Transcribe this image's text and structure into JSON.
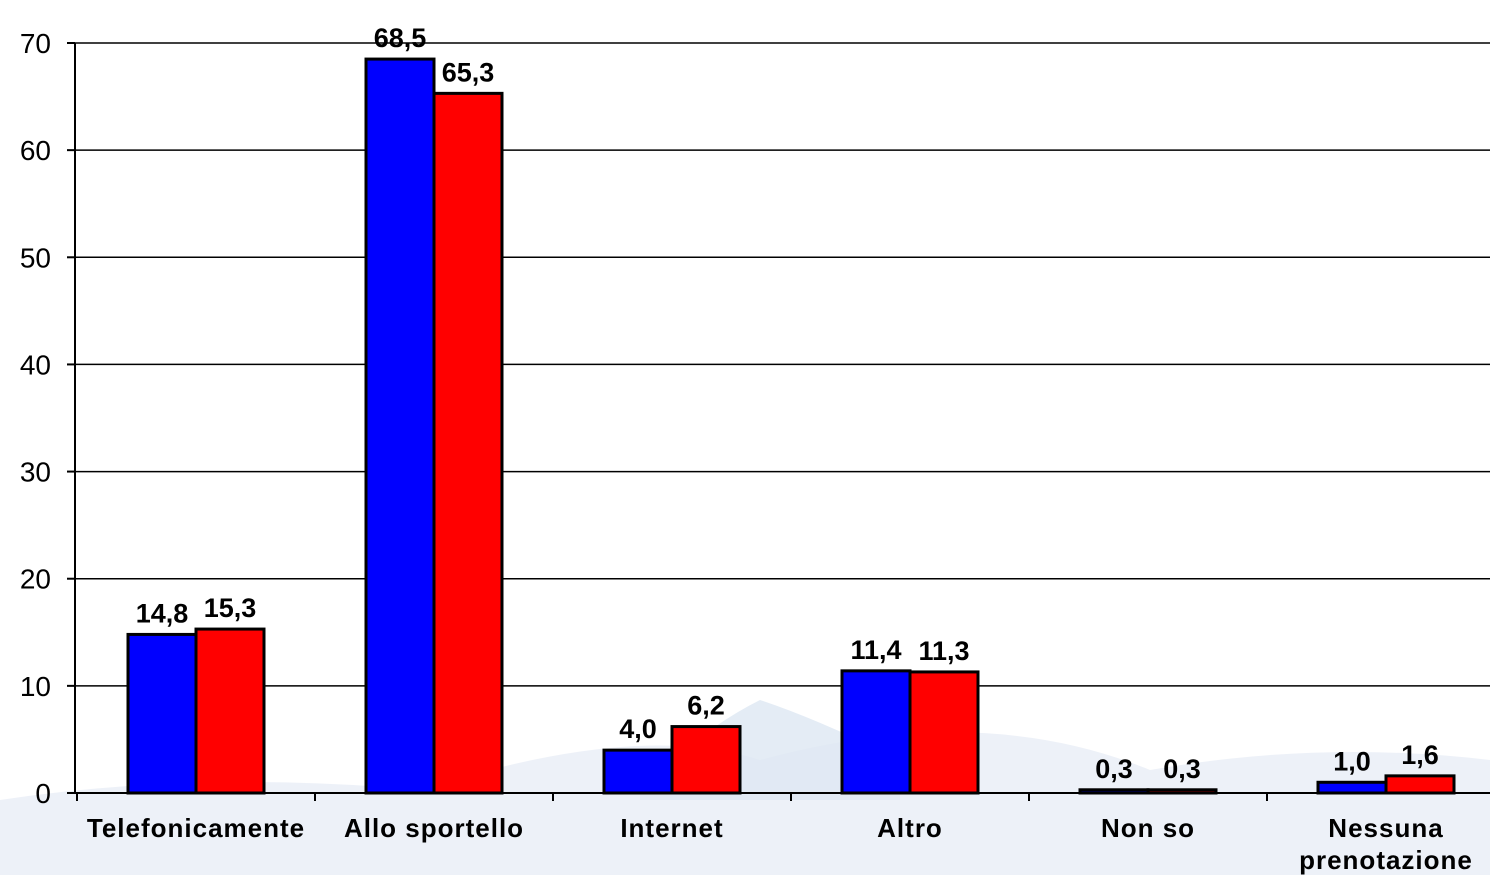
{
  "chart_data": {
    "type": "bar",
    "categories": [
      [
        "Telefonicamente"
      ],
      [
        "Allo sportello"
      ],
      [
        "Internet"
      ],
      [
        "Altro"
      ],
      [
        "Non so"
      ],
      [
        "Nessuna",
        "prenotazione"
      ]
    ],
    "series": [
      {
        "color": "#0000ff",
        "values": [
          14.8,
          68.5,
          4.0,
          11.4,
          0.3,
          1.0
        ],
        "labels": [
          "14,8",
          "68,5",
          "4,0",
          "11,4",
          "0,3",
          "1,0"
        ]
      },
      {
        "color": "#ff0000",
        "values": [
          15.3,
          65.3,
          6.2,
          11.3,
          0.3,
          1.6
        ],
        "labels": [
          "15,3",
          "65,3",
          "6,2",
          "11,3",
          "0,3",
          "1,6"
        ]
      }
    ],
    "ylim": [
      0,
      70
    ],
    "yticks": [
      "0",
      "10",
      "20",
      "30",
      "40",
      "50",
      "60",
      "70"
    ],
    "grid": true,
    "title": "",
    "xlabel": "",
    "ylabel": ""
  }
}
